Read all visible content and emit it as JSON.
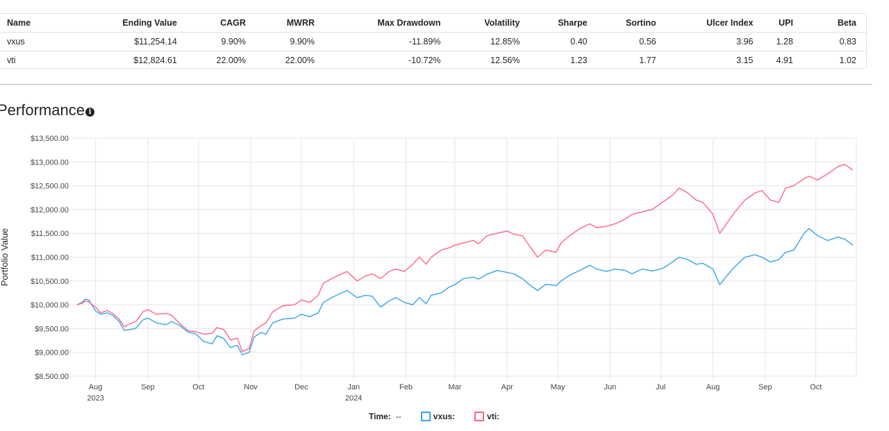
{
  "summary_table": {
    "headers": [
      "Name",
      "Ending Value",
      "CAGR",
      "MWRR",
      "Max Drawdown",
      "Volatility",
      "Sharpe",
      "Sortino",
      "Ulcer Index",
      "UPI",
      "Beta"
    ],
    "rows": [
      [
        "vxus",
        "$11,254.14",
        "9.90%",
        "9.90%",
        "-11.89%",
        "12.85%",
        "0.40",
        "0.56",
        "3.96",
        "1.28",
        "0.83"
      ],
      [
        "vti",
        "$12,824.61",
        "22.00%",
        "22.00%",
        "-10.72%",
        "12.56%",
        "1.23",
        "1.77",
        "3.15",
        "4.91",
        "1.02"
      ]
    ]
  },
  "performance": {
    "title": "Performance",
    "info_icon": "info-circle-icon"
  },
  "legend": {
    "time_label": "Time:",
    "time_value": "--",
    "items": [
      {
        "label": "vxus:",
        "color": "#36a2eb"
      },
      {
        "label": "vti:",
        "color": "#ff6384"
      }
    ]
  },
  "chart_data": {
    "type": "line",
    "ylabel": "Portfolio Value",
    "ylim": [
      8500,
      13500
    ],
    "yticks": [
      {
        "v": 8500,
        "label": "$8,500.00"
      },
      {
        "v": 9000,
        "label": "$9,000.00"
      },
      {
        "v": 9500,
        "label": "$9,500.00"
      },
      {
        "v": 10000,
        "label": "$10,000.00"
      },
      {
        "v": 10500,
        "label": "$10,500.00"
      },
      {
        "v": 11000,
        "label": "$11,000.00"
      },
      {
        "v": 11500,
        "label": "$11,500.00"
      },
      {
        "v": 12000,
        "label": "$12,000.00"
      },
      {
        "v": 12500,
        "label": "$12,500.00"
      },
      {
        "v": 13000,
        "label": "$13,000.00"
      },
      {
        "v": 13500,
        "label": "$13,500.00"
      }
    ],
    "xlim": [
      "2023-07-19",
      "2024-10-25"
    ],
    "xticks": [
      {
        "date": "2023-08-01",
        "label": "Aug",
        "sub": "2023"
      },
      {
        "date": "2023-09-01",
        "label": "Sep",
        "sub": ""
      },
      {
        "date": "2023-10-01",
        "label": "Oct",
        "sub": ""
      },
      {
        "date": "2023-11-01",
        "label": "Nov",
        "sub": ""
      },
      {
        "date": "2023-12-01",
        "label": "Dec",
        "sub": ""
      },
      {
        "date": "2024-01-01",
        "label": "Jan",
        "sub": "2024"
      },
      {
        "date": "2024-02-01",
        "label": "Feb",
        "sub": ""
      },
      {
        "date": "2024-03-01",
        "label": "Mar",
        "sub": ""
      },
      {
        "date": "2024-04-01",
        "label": "Apr",
        "sub": ""
      },
      {
        "date": "2024-05-01",
        "label": "May",
        "sub": ""
      },
      {
        "date": "2024-06-01",
        "label": "Jun",
        "sub": ""
      },
      {
        "date": "2024-07-01",
        "label": "Jul",
        "sub": ""
      },
      {
        "date": "2024-08-01",
        "label": "Aug",
        "sub": ""
      },
      {
        "date": "2024-09-01",
        "label": "Sep",
        "sub": ""
      },
      {
        "date": "2024-10-01",
        "label": "Oct",
        "sub": ""
      }
    ],
    "grid": true,
    "series": [
      {
        "name": "vxus",
        "color": "#36a2eb",
        "points": [
          [
            "2023-07-21",
            10000
          ],
          [
            "2023-07-24",
            10050
          ],
          [
            "2023-07-26",
            10120
          ],
          [
            "2023-07-28",
            10100
          ],
          [
            "2023-08-01",
            9870
          ],
          [
            "2023-08-04",
            9800
          ],
          [
            "2023-08-08",
            9830
          ],
          [
            "2023-08-11",
            9780
          ],
          [
            "2023-08-15",
            9650
          ],
          [
            "2023-08-18",
            9460
          ],
          [
            "2023-08-22",
            9480
          ],
          [
            "2023-08-25",
            9510
          ],
          [
            "2023-08-29",
            9680
          ],
          [
            "2023-09-01",
            9720
          ],
          [
            "2023-09-06",
            9620
          ],
          [
            "2023-09-12",
            9580
          ],
          [
            "2023-09-15",
            9650
          ],
          [
            "2023-09-20",
            9560
          ],
          [
            "2023-09-25",
            9420
          ],
          [
            "2023-09-29",
            9400
          ],
          [
            "2023-10-04",
            9230
          ],
          [
            "2023-10-09",
            9180
          ],
          [
            "2023-10-12",
            9350
          ],
          [
            "2023-10-16",
            9290
          ],
          [
            "2023-10-20",
            9100
          ],
          [
            "2023-10-24",
            9150
          ],
          [
            "2023-10-27",
            8950
          ],
          [
            "2023-10-31",
            9000
          ],
          [
            "2023-11-03",
            9320
          ],
          [
            "2023-11-07",
            9420
          ],
          [
            "2023-11-10",
            9380
          ],
          [
            "2023-11-14",
            9620
          ],
          [
            "2023-11-20",
            9700
          ],
          [
            "2023-11-27",
            9720
          ],
          [
            "2023-12-01",
            9800
          ],
          [
            "2023-12-06",
            9750
          ],
          [
            "2023-12-11",
            9830
          ],
          [
            "2023-12-14",
            10050
          ],
          [
            "2023-12-19",
            10150
          ],
          [
            "2023-12-22",
            10200
          ],
          [
            "2023-12-28",
            10300
          ],
          [
            "2024-01-03",
            10150
          ],
          [
            "2024-01-08",
            10200
          ],
          [
            "2024-01-12",
            10180
          ],
          [
            "2024-01-17",
            9950
          ],
          [
            "2024-01-22",
            10080
          ],
          [
            "2024-01-26",
            10150
          ],
          [
            "2024-01-31",
            10050
          ],
          [
            "2024-02-05",
            10000
          ],
          [
            "2024-02-09",
            10150
          ],
          [
            "2024-02-13",
            10020
          ],
          [
            "2024-02-16",
            10200
          ],
          [
            "2024-02-22",
            10250
          ],
          [
            "2024-02-27",
            10380
          ],
          [
            "2024-03-01",
            10420
          ],
          [
            "2024-03-06",
            10550
          ],
          [
            "2024-03-12",
            10580
          ],
          [
            "2024-03-15",
            10540
          ],
          [
            "2024-03-20",
            10640
          ],
          [
            "2024-03-26",
            10720
          ],
          [
            "2024-04-01",
            10680
          ],
          [
            "2024-04-05",
            10650
          ],
          [
            "2024-04-10",
            10550
          ],
          [
            "2024-04-15",
            10400
          ],
          [
            "2024-04-19",
            10300
          ],
          [
            "2024-04-24",
            10430
          ],
          [
            "2024-04-30",
            10400
          ],
          [
            "2024-05-03",
            10500
          ],
          [
            "2024-05-08",
            10620
          ],
          [
            "2024-05-14",
            10720
          ],
          [
            "2024-05-20",
            10830
          ],
          [
            "2024-05-24",
            10750
          ],
          [
            "2024-05-30",
            10700
          ],
          [
            "2024-06-04",
            10750
          ],
          [
            "2024-06-10",
            10720
          ],
          [
            "2024-06-14",
            10650
          ],
          [
            "2024-06-20",
            10750
          ],
          [
            "2024-06-26",
            10710
          ],
          [
            "2024-07-02",
            10760
          ],
          [
            "2024-07-08",
            10900
          ],
          [
            "2024-07-12",
            11000
          ],
          [
            "2024-07-17",
            10950
          ],
          [
            "2024-07-22",
            10850
          ],
          [
            "2024-07-26",
            10870
          ],
          [
            "2024-08-01",
            10750
          ],
          [
            "2024-08-05",
            10420
          ],
          [
            "2024-08-09",
            10600
          ],
          [
            "2024-08-14",
            10800
          ],
          [
            "2024-08-20",
            11000
          ],
          [
            "2024-08-26",
            11050
          ],
          [
            "2024-08-30",
            11000
          ],
          [
            "2024-09-04",
            10900
          ],
          [
            "2024-09-09",
            10950
          ],
          [
            "2024-09-13",
            11100
          ],
          [
            "2024-09-18",
            11150
          ],
          [
            "2024-09-24",
            11500
          ],
          [
            "2024-09-27",
            11600
          ],
          [
            "2024-10-02",
            11450
          ],
          [
            "2024-10-08",
            11350
          ],
          [
            "2024-10-14",
            11420
          ],
          [
            "2024-10-18",
            11380
          ],
          [
            "2024-10-23",
            11254
          ]
        ]
      },
      {
        "name": "vti",
        "color": "#ff6384",
        "points": [
          [
            "2023-07-21",
            10000
          ],
          [
            "2023-07-24",
            10030
          ],
          [
            "2023-07-26",
            10080
          ],
          [
            "2023-07-28",
            10060
          ],
          [
            "2023-08-01",
            9950
          ],
          [
            "2023-08-04",
            9830
          ],
          [
            "2023-08-08",
            9880
          ],
          [
            "2023-08-11",
            9820
          ],
          [
            "2023-08-15",
            9700
          ],
          [
            "2023-08-18",
            9540
          ],
          [
            "2023-08-22",
            9610
          ],
          [
            "2023-08-25",
            9650
          ],
          [
            "2023-08-29",
            9850
          ],
          [
            "2023-09-01",
            9900
          ],
          [
            "2023-09-06",
            9800
          ],
          [
            "2023-09-12",
            9820
          ],
          [
            "2023-09-15",
            9780
          ],
          [
            "2023-09-20",
            9600
          ],
          [
            "2023-09-25",
            9450
          ],
          [
            "2023-09-29",
            9440
          ],
          [
            "2023-10-04",
            9380
          ],
          [
            "2023-10-09",
            9400
          ],
          [
            "2023-10-12",
            9520
          ],
          [
            "2023-10-16",
            9480
          ],
          [
            "2023-10-20",
            9260
          ],
          [
            "2023-10-24",
            9300
          ],
          [
            "2023-10-27",
            9020
          ],
          [
            "2023-10-31",
            9080
          ],
          [
            "2023-11-03",
            9450
          ],
          [
            "2023-11-07",
            9560
          ],
          [
            "2023-11-10",
            9620
          ],
          [
            "2023-11-14",
            9850
          ],
          [
            "2023-11-20",
            9980
          ],
          [
            "2023-11-27",
            10000
          ],
          [
            "2023-12-01",
            10100
          ],
          [
            "2023-12-06",
            10050
          ],
          [
            "2023-12-11",
            10200
          ],
          [
            "2023-12-14",
            10450
          ],
          [
            "2023-12-19",
            10550
          ],
          [
            "2023-12-22",
            10600
          ],
          [
            "2023-12-28",
            10700
          ],
          [
            "2024-01-03",
            10500
          ],
          [
            "2024-01-08",
            10600
          ],
          [
            "2024-01-12",
            10650
          ],
          [
            "2024-01-17",
            10550
          ],
          [
            "2024-01-22",
            10700
          ],
          [
            "2024-01-26",
            10750
          ],
          [
            "2024-01-31",
            10700
          ],
          [
            "2024-02-05",
            10850
          ],
          [
            "2024-02-09",
            11000
          ],
          [
            "2024-02-13",
            10850
          ],
          [
            "2024-02-16",
            11000
          ],
          [
            "2024-02-22",
            11150
          ],
          [
            "2024-02-27",
            11200
          ],
          [
            "2024-03-01",
            11250
          ],
          [
            "2024-03-06",
            11300
          ],
          [
            "2024-03-12",
            11350
          ],
          [
            "2024-03-15",
            11280
          ],
          [
            "2024-03-20",
            11450
          ],
          [
            "2024-03-26",
            11500
          ],
          [
            "2024-04-01",
            11550
          ],
          [
            "2024-04-05",
            11480
          ],
          [
            "2024-04-10",
            11450
          ],
          [
            "2024-04-15",
            11200
          ],
          [
            "2024-04-19",
            11000
          ],
          [
            "2024-04-24",
            11150
          ],
          [
            "2024-04-30",
            11100
          ],
          [
            "2024-05-03",
            11300
          ],
          [
            "2024-05-08",
            11450
          ],
          [
            "2024-05-14",
            11600
          ],
          [
            "2024-05-20",
            11700
          ],
          [
            "2024-05-24",
            11620
          ],
          [
            "2024-05-30",
            11650
          ],
          [
            "2024-06-04",
            11700
          ],
          [
            "2024-06-10",
            11800
          ],
          [
            "2024-06-14",
            11900
          ],
          [
            "2024-06-20",
            11950
          ],
          [
            "2024-06-26",
            12000
          ],
          [
            "2024-07-02",
            12150
          ],
          [
            "2024-07-08",
            12300
          ],
          [
            "2024-07-12",
            12450
          ],
          [
            "2024-07-17",
            12350
          ],
          [
            "2024-07-22",
            12200
          ],
          [
            "2024-07-26",
            12150
          ],
          [
            "2024-08-01",
            11900
          ],
          [
            "2024-08-05",
            11500
          ],
          [
            "2024-08-09",
            11700
          ],
          [
            "2024-08-14",
            11950
          ],
          [
            "2024-08-20",
            12200
          ],
          [
            "2024-08-26",
            12350
          ],
          [
            "2024-08-30",
            12400
          ],
          [
            "2024-09-04",
            12200
          ],
          [
            "2024-09-09",
            12150
          ],
          [
            "2024-09-13",
            12450
          ],
          [
            "2024-09-18",
            12500
          ],
          [
            "2024-09-24",
            12650
          ],
          [
            "2024-09-27",
            12700
          ],
          [
            "2024-10-02",
            12620
          ],
          [
            "2024-10-08",
            12750
          ],
          [
            "2024-10-14",
            12900
          ],
          [
            "2024-10-18",
            12950
          ],
          [
            "2024-10-23",
            12825
          ]
        ]
      }
    ]
  }
}
